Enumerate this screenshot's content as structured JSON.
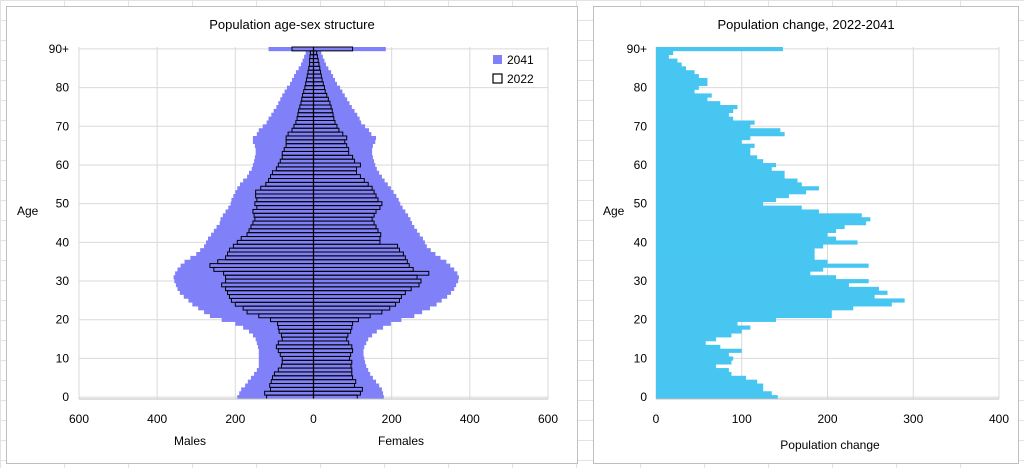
{
  "colors": {
    "fill_2041": "#8080f8",
    "stroke_2022": "#000000",
    "change_fill": "#46c6f0",
    "grid": "#d9d9d9"
  },
  "chart_data": [
    {
      "type": "bar",
      "orientation": "horizontal",
      "style": "population-pyramid",
      "title": "Population age-sex structure",
      "ylabel": "Age",
      "xlabel_left": "Males",
      "xlabel_right": "Females",
      "xlim": [
        -600,
        600
      ],
      "x_ticks": [
        "600",
        "400",
        "200",
        "0",
        "200",
        "400",
        "600"
      ],
      "y_ticks": [
        "0",
        "10",
        "20",
        "30",
        "40",
        "50",
        "60",
        "70",
        "80",
        "90+"
      ],
      "grid": true,
      "legend_position": "top-right",
      "ages": [
        0,
        1,
        2,
        3,
        4,
        5,
        6,
        7,
        8,
        9,
        10,
        11,
        12,
        13,
        14,
        15,
        16,
        17,
        18,
        19,
        20,
        21,
        22,
        23,
        24,
        25,
        26,
        27,
        28,
        29,
        30,
        31,
        32,
        33,
        34,
        35,
        36,
        37,
        38,
        39,
        40,
        41,
        42,
        43,
        44,
        45,
        46,
        47,
        48,
        49,
        50,
        51,
        52,
        53,
        54,
        55,
        56,
        57,
        58,
        59,
        60,
        61,
        62,
        63,
        64,
        65,
        66,
        67,
        68,
        69,
        70,
        71,
        72,
        73,
        74,
        75,
        76,
        77,
        78,
        79,
        80,
        81,
        82,
        83,
        84,
        85,
        86,
        87,
        88,
        89,
        90
      ],
      "series": [
        {
          "name": "2041",
          "males": [
            195,
            190,
            185,
            175,
            168,
            160,
            152,
            145,
            140,
            140,
            140,
            140,
            140,
            142,
            145,
            148,
            155,
            165,
            180,
            200,
            235,
            265,
            280,
            295,
            310,
            320,
            332,
            342,
            348,
            352,
            356,
            358,
            354,
            348,
            340,
            330,
            315,
            300,
            290,
            280,
            275,
            270,
            262,
            255,
            248,
            240,
            238,
            232,
            225,
            218,
            212,
            210,
            205,
            200,
            195,
            188,
            180,
            170,
            165,
            158,
            155,
            152,
            150,
            148,
            148,
            150,
            155,
            155,
            145,
            140,
            130,
            120,
            115,
            108,
            102,
            95,
            90,
            85,
            80,
            74,
            68,
            60,
            55,
            50,
            45,
            38,
            32,
            28,
            24,
            20,
            115
          ],
          "females": [
            180,
            178,
            175,
            168,
            160,
            152,
            145,
            140,
            135,
            132,
            130,
            128,
            128,
            130,
            135,
            140,
            150,
            162,
            178,
            198,
            225,
            258,
            278,
            298,
            315,
            328,
            342,
            352,
            360,
            365,
            370,
            372,
            368,
            360,
            350,
            340,
            325,
            312,
            300,
            290,
            285,
            280,
            272,
            265,
            258,
            252,
            248,
            242,
            235,
            228,
            222,
            218,
            212,
            205,
            198,
            190,
            182,
            175,
            168,
            162,
            158,
            155,
            152,
            150,
            150,
            152,
            158,
            160,
            148,
            142,
            132,
            122,
            118,
            112,
            105,
            98,
            92,
            86,
            80,
            74,
            68,
            60,
            55,
            50,
            45,
            38,
            32,
            28,
            24,
            20,
            185
          ]
        },
        {
          "name": "2022",
          "males": [
            120,
            125,
            110,
            112,
            108,
            105,
            100,
            90,
            82,
            80,
            80,
            85,
            90,
            95,
            90,
            80,
            82,
            88,
            90,
            92,
            110,
            140,
            170,
            180,
            200,
            210,
            215,
            220,
            225,
            235,
            225,
            225,
            230,
            255,
            265,
            245,
            225,
            220,
            215,
            205,
            195,
            185,
            170,
            165,
            160,
            155,
            150,
            152,
            155,
            145,
            150,
            145,
            148,
            148,
            135,
            122,
            115,
            110,
            105,
            95,
            90,
            85,
            80,
            80,
            75,
            70,
            70,
            70,
            65,
            55,
            50,
            45,
            42,
            40,
            38,
            35,
            32,
            30,
            28,
            25,
            22,
            20,
            18,
            16,
            14,
            12,
            10,
            10,
            9,
            8,
            55
          ],
          "females": [
            112,
            120,
            125,
            105,
            108,
            100,
            98,
            98,
            96,
            98,
            92,
            95,
            100,
            98,
            90,
            85,
            88,
            95,
            98,
            100,
            115,
            145,
            175,
            195,
            210,
            220,
            225,
            235,
            250,
            270,
            275,
            265,
            295,
            255,
            245,
            240,
            235,
            230,
            220,
            215,
            170,
            170,
            172,
            165,
            160,
            155,
            150,
            155,
            160,
            170,
            175,
            165,
            160,
            155,
            150,
            140,
            130,
            120,
            110,
            110,
            120,
            105,
            100,
            90,
            90,
            85,
            80,
            85,
            75,
            65,
            60,
            55,
            52,
            50,
            48,
            45,
            42,
            38,
            34,
            30,
            28,
            25,
            22,
            20,
            18,
            16,
            14,
            12,
            10,
            8,
            100
          ]
        }
      ]
    },
    {
      "type": "bar",
      "orientation": "horizontal",
      "title": "Population change, 2022-2041",
      "ylabel": "Age",
      "xlabel": "Population change",
      "xlim": [
        0,
        400
      ],
      "x_ticks": [
        "0",
        "100",
        "200",
        "300",
        "400"
      ],
      "y_ticks": [
        "0",
        "10",
        "20",
        "30",
        "40",
        "50",
        "60",
        "70",
        "80",
        "90+"
      ],
      "grid": true,
      "ages": [
        0,
        1,
        2,
        3,
        4,
        5,
        6,
        7,
        8,
        9,
        10,
        11,
        12,
        13,
        14,
        15,
        16,
        17,
        18,
        19,
        20,
        21,
        22,
        23,
        24,
        25,
        26,
        27,
        28,
        29,
        30,
        31,
        32,
        33,
        34,
        35,
        36,
        37,
        38,
        39,
        40,
        41,
        42,
        43,
        44,
        45,
        46,
        47,
        48,
        49,
        50,
        51,
        52,
        53,
        54,
        55,
        56,
        57,
        58,
        59,
        60,
        61,
        62,
        63,
        64,
        65,
        66,
        67,
        68,
        69,
        70,
        71,
        72,
        73,
        74,
        75,
        76,
        77,
        78,
        79,
        80,
        81,
        82,
        83,
        84,
        85,
        86,
        87,
        88,
        89,
        90
      ],
      "values": [
        142,
        135,
        125,
        125,
        118,
        105,
        88,
        85,
        70,
        88,
        90,
        85,
        100,
        75,
        58,
        70,
        88,
        100,
        110,
        95,
        140,
        205,
        205,
        230,
        275,
        290,
        255,
        270,
        260,
        225,
        248,
        210,
        180,
        195,
        248,
        200,
        185,
        185,
        185,
        195,
        235,
        210,
        200,
        210,
        220,
        245,
        250,
        240,
        190,
        170,
        125,
        140,
        155,
        175,
        190,
        170,
        165,
        150,
        150,
        135,
        140,
        125,
        118,
        110,
        110,
        115,
        100,
        110,
        150,
        145,
        110,
        115,
        90,
        85,
        90,
        95,
        75,
        60,
        65,
        45,
        50,
        60,
        60,
        50,
        45,
        35,
        30,
        25,
        15,
        20,
        148
      ]
    }
  ]
}
